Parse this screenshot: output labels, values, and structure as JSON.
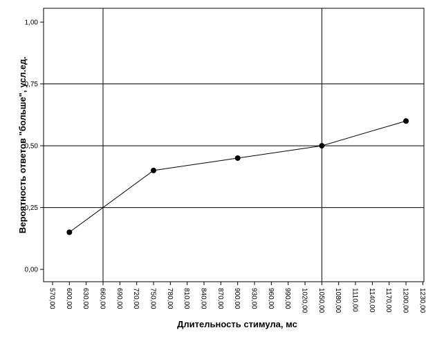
{
  "chart_data": {
    "type": "line",
    "x_label": "Длительность стимула, мс",
    "y_label": "Вероятность ответов \"больше\", усл.ед.",
    "x": [
      600,
      750,
      900,
      1050,
      1200
    ],
    "series": [
      {
        "color": "#000000",
        "values": [
          0.15,
          0.4,
          0.45,
          0.5,
          0.6
        ]
      }
    ],
    "xlim": [
      554,
      1232
    ],
    "ylim": [
      -0.05,
      1.056
    ],
    "xticks": [
      {
        "value": 570,
        "label": "570,00"
      },
      {
        "value": 600,
        "label": "600,00"
      },
      {
        "value": 630,
        "label": "630,00"
      },
      {
        "value": 660,
        "label": "660,00"
      },
      {
        "value": 690,
        "label": "690,00"
      },
      {
        "value": 720,
        "label": "720,00"
      },
      {
        "value": 750,
        "label": "750,00"
      },
      {
        "value": 780,
        "label": "780,00"
      },
      {
        "value": 810,
        "label": "810,00"
      },
      {
        "value": 840,
        "label": "840,00"
      },
      {
        "value": 870,
        "label": "870,00"
      },
      {
        "value": 900,
        "label": "900,00"
      },
      {
        "value": 930,
        "label": "930,00"
      },
      {
        "value": 960,
        "label": "960,00"
      },
      {
        "value": 990,
        "label": "990,00"
      },
      {
        "value": 1020,
        "label": "1020,00"
      },
      {
        "value": 1050,
        "label": "1050,00"
      },
      {
        "value": 1080,
        "label": "1080,00"
      },
      {
        "value": 1110,
        "label": "1110,00"
      },
      {
        "value": 1140,
        "label": "1140,00"
      },
      {
        "value": 1170,
        "label": "1170,00"
      },
      {
        "value": 1200,
        "label": "1200,00"
      },
      {
        "value": 1230,
        "label": "1230,00"
      }
    ],
    "yticks": [
      {
        "value": 0,
        "label": "0,00"
      },
      {
        "value": 0.25,
        "label": "0,25"
      },
      {
        "value": 0.5,
        "label": "0,50"
      },
      {
        "value": 0.75,
        "label": "0,75"
      },
      {
        "value": 1,
        "label": "1,00"
      }
    ],
    "x_reference_lines": [
      660,
      1050
    ],
    "y_reference_lines": [
      0.25,
      0.5,
      0.75
    ]
  }
}
